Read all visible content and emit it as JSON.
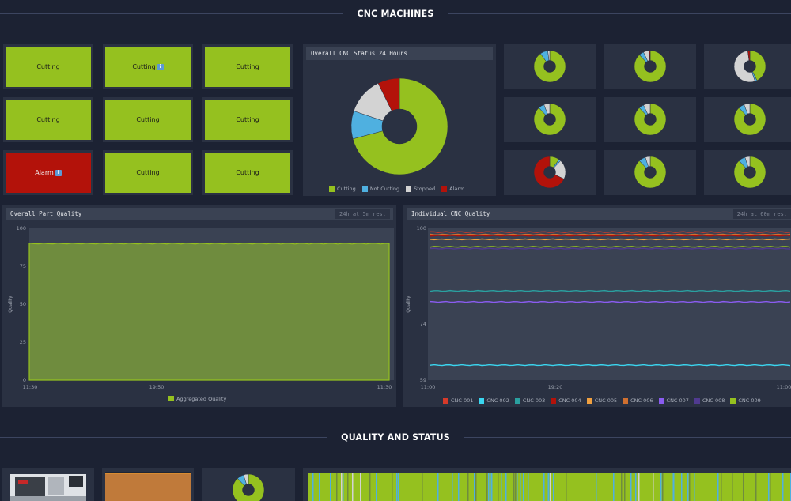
{
  "sections": {
    "top_title": "CNC MACHINES",
    "bottom_title": "QUALITY AND STATUS"
  },
  "colors": {
    "cutting": "#95c11f",
    "not_cutting": "#4fb0e0",
    "stopped": "#d3d3d3",
    "alarm": "#b3120a"
  },
  "machines": [
    {
      "status": "Cutting",
      "info": false
    },
    {
      "status": "Cutting",
      "info": true
    },
    {
      "status": "Cutting",
      "info": false
    },
    {
      "status": "Cutting",
      "info": false
    },
    {
      "status": "Cutting",
      "info": false
    },
    {
      "status": "Cutting",
      "info": false
    },
    {
      "status": "Alarm",
      "info": true
    },
    {
      "status": "Cutting",
      "info": false
    },
    {
      "status": "Cutting",
      "info": false
    }
  ],
  "overall_status": {
    "title": "Overall CNC Status 24 Hours",
    "legend": [
      "Cutting",
      "Not Cutting",
      "Stopped",
      "Alarm"
    ],
    "chart_data": {
      "type": "pie",
      "categories": [
        "Cutting",
        "Not Cutting",
        "Stopped",
        "Alarm"
      ],
      "values": [
        68,
        9,
        12,
        7
      ]
    }
  },
  "mini_donuts": [
    {
      "values": [
        90,
        8,
        2,
        0
      ]
    },
    {
      "values": [
        88,
        5,
        6,
        1
      ]
    },
    {
      "values": [
        40,
        2,
        50,
        2
      ]
    },
    {
      "values": [
        88,
        6,
        6,
        0
      ]
    },
    {
      "values": [
        88,
        5,
        7,
        0
      ]
    },
    {
      "values": [
        88,
        6,
        6,
        0
      ]
    },
    {
      "values": [
        10,
        2,
        20,
        68
      ]
    },
    {
      "values": [
        88,
        7,
        5,
        0
      ]
    },
    {
      "values": [
        88,
        7,
        5,
        0
      ]
    }
  ],
  "part_quality": {
    "title": "Overall Part Quality",
    "range": "24h at 5m res.",
    "ylabel": "Quality",
    "legend": "Aggregated Quality",
    "chart_data": {
      "type": "area",
      "x_ticks": [
        "11:30",
        "19:50",
        "11:30"
      ],
      "y_ticks": [
        "0",
        "25",
        "50",
        "75",
        "100"
      ],
      "ylim": [
        0,
        100
      ],
      "series": [
        {
          "name": "Aggregated Quality",
          "value": 90
        }
      ]
    }
  },
  "cnc_quality": {
    "title": "Individual CNC Quality",
    "range": "24h at 60m res.",
    "ylabel": "Quality",
    "chart_data": {
      "type": "line",
      "x_ticks": [
        "11:00",
        "19:20",
        "11:00"
      ],
      "y_ticks": [
        "59",
        "74",
        "100"
      ],
      "ylim": [
        59,
        100
      ],
      "series": [
        {
          "name": "CNC 001",
          "color": "#d63a2a",
          "value": 99
        },
        {
          "name": "CNC 002",
          "color": "#3ad6f0",
          "value": 63
        },
        {
          "name": "CNC 003",
          "color": "#2aa0a0",
          "value": 83
        },
        {
          "name": "CNC 004",
          "color": "#b3120a",
          "value": 98
        },
        {
          "name": "CNC 005",
          "color": "#f0a040",
          "value": 97
        },
        {
          "name": "CNC 006",
          "color": "#d07030",
          "value": 98.3
        },
        {
          "name": "CNC 007",
          "color": "#8a5cf0",
          "value": 80
        },
        {
          "name": "CNC 008",
          "color": "#503a90",
          "value": 94.5
        },
        {
          "name": "CNC 009",
          "color": "#95c11f",
          "value": 95
        }
      ]
    }
  },
  "bottom": {
    "donut": {
      "values": [
        88,
        7,
        5,
        0
      ]
    }
  }
}
